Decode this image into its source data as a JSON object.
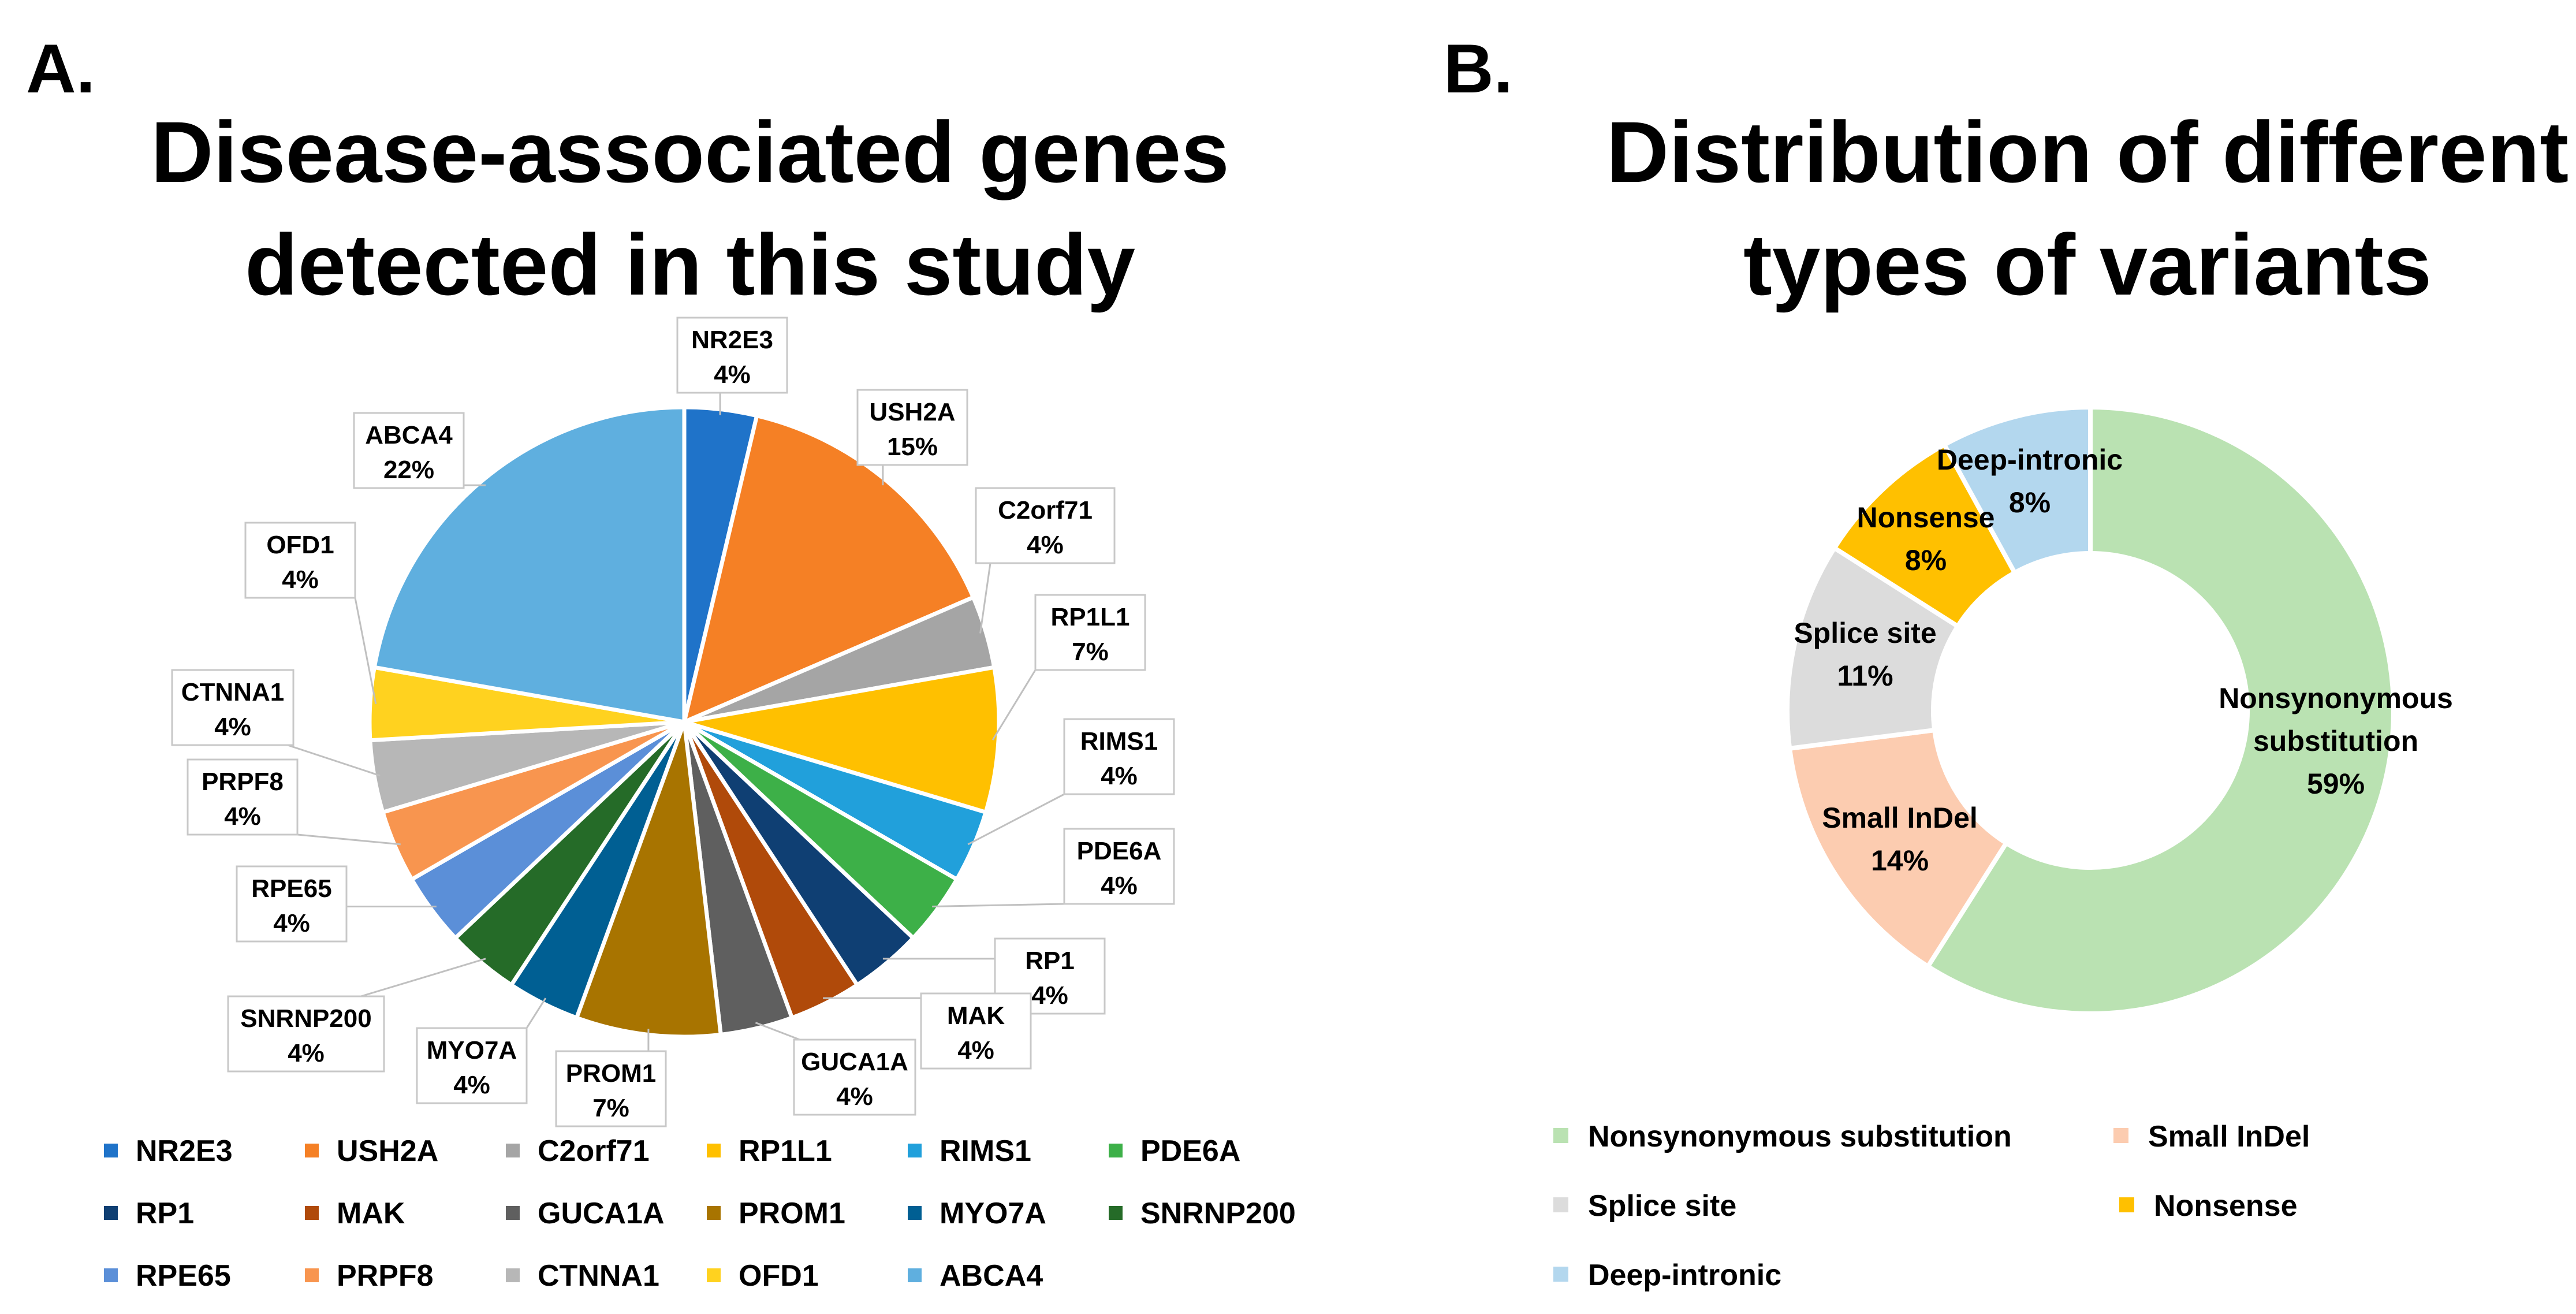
{
  "colors": {
    "background": "#ffffff",
    "callout_border": "#c8c8c8",
    "leader_line": "#c0c0c0",
    "slice_border": "#ffffff"
  },
  "chart_data": [
    {
      "type": "pie",
      "panel_label": "A.",
      "title_lines": [
        "Disease-associated genes",
        "detected in this study"
      ],
      "title": "Disease-associated genes detected in this study",
      "unit": "%",
      "legend_position": "bottom",
      "slices": [
        {
          "label": "NR2E3",
          "value": 3.7,
          "value_label": "4%",
          "color": "#1f73c9"
        },
        {
          "label": "USH2A",
          "value": 14.8,
          "value_label": "15%",
          "color": "#f58025"
        },
        {
          "label": "C2orf71",
          "value": 3.7,
          "value_label": "4%",
          "color": "#a5a5a5"
        },
        {
          "label": "RP1L1",
          "value": 7.4,
          "value_label": "7%",
          "color": "#ffc000"
        },
        {
          "label": "RIMS1",
          "value": 3.7,
          "value_label": "4%",
          "color": "#21a0db"
        },
        {
          "label": "PDE6A",
          "value": 3.7,
          "value_label": "4%",
          "color": "#3db048"
        },
        {
          "label": "RP1",
          "value": 3.7,
          "value_label": "4%",
          "color": "#0f3f73"
        },
        {
          "label": "MAK",
          "value": 3.7,
          "value_label": "4%",
          "color": "#b04a0a"
        },
        {
          "label": "GUCA1A",
          "value": 3.7,
          "value_label": "4%",
          "color": "#5f5f5f"
        },
        {
          "label": "PROM1",
          "value": 7.4,
          "value_label": "7%",
          "color": "#a87400"
        },
        {
          "label": "MYO7A",
          "value": 3.7,
          "value_label": "4%",
          "color": "#005f93"
        },
        {
          "label": "SNRNP200",
          "value": 3.7,
          "value_label": "4%",
          "color": "#256b28"
        },
        {
          "label": "RPE65",
          "value": 3.7,
          "value_label": "4%",
          "color": "#5b8fd8"
        },
        {
          "label": "PRPF8",
          "value": 3.7,
          "value_label": "4%",
          "color": "#f8954f"
        },
        {
          "label": "CTNNA1",
          "value": 3.7,
          "value_label": "4%",
          "color": "#b7b7b7"
        },
        {
          "label": "OFD1",
          "value": 3.7,
          "value_label": "4%",
          "color": "#ffd21f"
        },
        {
          "label": "ABCA4",
          "value": 22.2,
          "value_label": "22%",
          "color": "#5fafdf"
        }
      ]
    },
    {
      "type": "pie",
      "variant": "donut",
      "panel_label": "B.",
      "title_lines": [
        "Distribution of different",
        "types of variants"
      ],
      "title": "Distribution of different types of variants",
      "unit": "%",
      "legend_position": "bottom",
      "slices": [
        {
          "label": "Nonsynonymous substitution",
          "label_lines": [
            "Nonsynonymous",
            "substitution"
          ],
          "value": 59,
          "value_label": "59%",
          "color": "#bae2b2"
        },
        {
          "label": "Small InDel",
          "label_lines": [
            "Small InDel"
          ],
          "value": 14,
          "value_label": "14%",
          "color": "#fcccb0"
        },
        {
          "label": "Splice site",
          "label_lines": [
            "Splice site"
          ],
          "value": 11,
          "value_label": "11%",
          "color": "#dcdcdc"
        },
        {
          "label": "Nonsense",
          "label_lines": [
            "Nonsense"
          ],
          "value": 8,
          "value_label": "8%",
          "color": "#ffc000"
        },
        {
          "label": "Deep-intronic",
          "label_lines": [
            "Deep-intronic"
          ],
          "value": 8,
          "value_label": "8%",
          "color": "#b3d7ee"
        }
      ]
    }
  ]
}
